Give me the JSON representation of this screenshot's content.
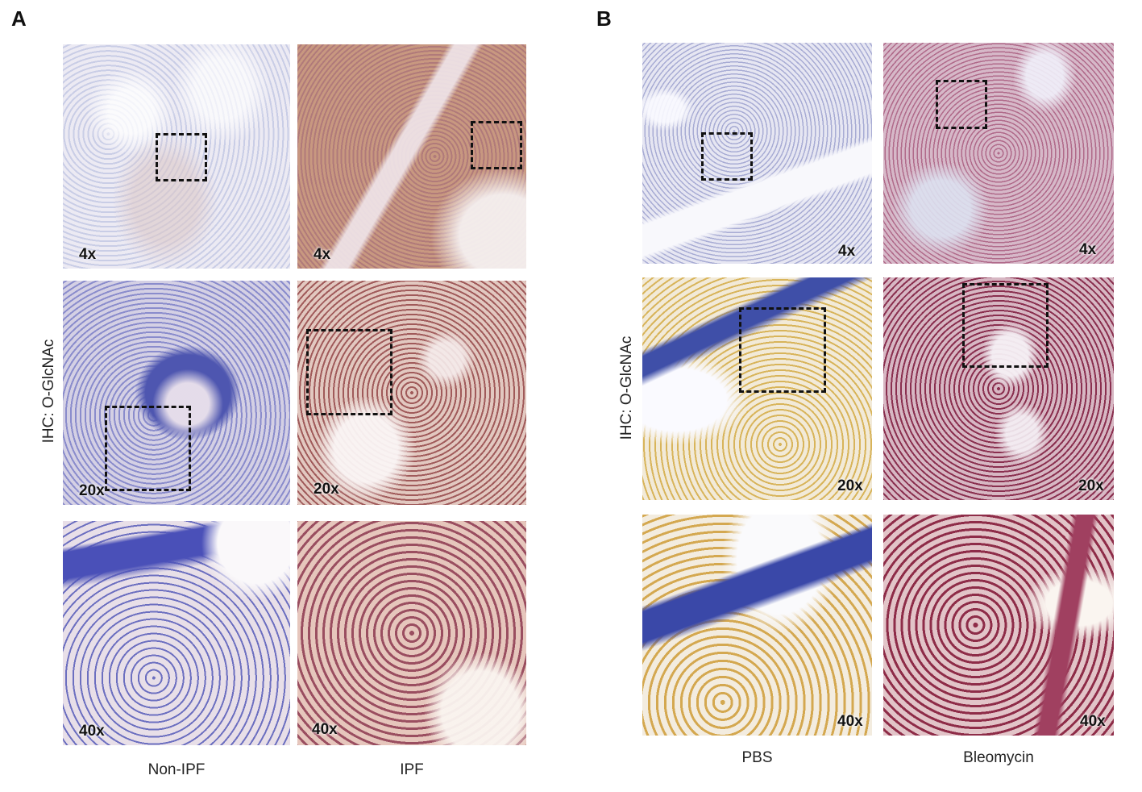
{
  "panels": {
    "a": {
      "letter": "A",
      "ylabel": "IHC: O-GlcNAc",
      "columns": [
        "Non-IPF",
        "IPF"
      ],
      "magnifications": [
        "4x",
        "4x",
        "20x",
        "20x",
        "40x",
        "40x"
      ]
    },
    "b": {
      "letter": "B",
      "ylabel": "IHC: O-GlcNAc",
      "columns": [
        "PBS",
        "Bleomycin"
      ],
      "magnifications": [
        "4x",
        "4x",
        "20x",
        "20x",
        "40x",
        "40x"
      ]
    }
  }
}
